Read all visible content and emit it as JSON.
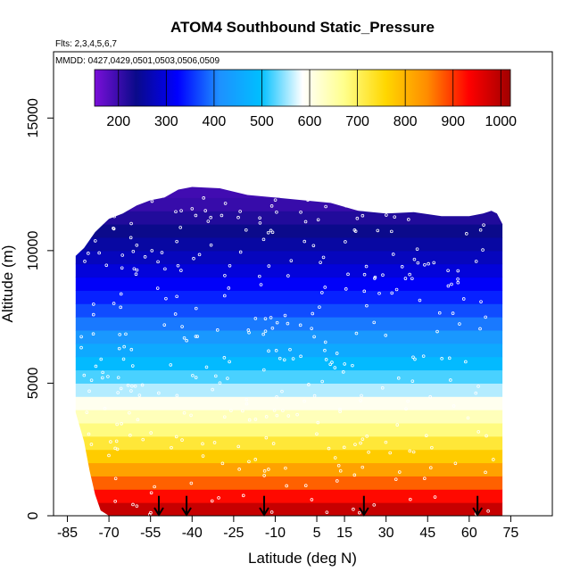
{
  "chart_data": {
    "type": "heatmap",
    "title": "ATOM4 Southbound Static_Pressure",
    "flights_note": "Flts: 2,3,4,5,6,7",
    "dates_note": "MMDD: 0427,0429,0501,0503,0506,0509",
    "xlabel": "Latitude (deg N)",
    "ylabel": "Altitude (m)",
    "xlim": [
      -90,
      90
    ],
    "ylim": [
      0,
      17500
    ],
    "x_ticks": [
      -85,
      -70,
      -55,
      -40,
      -25,
      -10,
      5,
      15,
      30,
      45,
      60,
      75
    ],
    "y_ticks": [
      0,
      5000,
      10000,
      15000
    ],
    "colorbar": {
      "min": 150,
      "max": 1020,
      "ticks": [
        200,
        300,
        400,
        500,
        600,
        700,
        800,
        900,
        1000
      ],
      "palette": [
        "#7a0fd9",
        "#0a0a8a",
        "#0000ff",
        "#1e90ff",
        "#00bfff",
        "#ffffff",
        "#ffff8c",
        "#ffd700",
        "#ff8c00",
        "#ff0000",
        "#a00000"
      ]
    },
    "pressure_profile": [
      {
        "altitude_m": 0,
        "pressure": 1013
      },
      {
        "altitude_m": 1000,
        "pressure": 899
      },
      {
        "altitude_m": 2000,
        "pressure": 795
      },
      {
        "altitude_m": 3000,
        "pressure": 701
      },
      {
        "altitude_m": 4000,
        "pressure": 616
      },
      {
        "altitude_m": 5000,
        "pressure": 540
      },
      {
        "altitude_m": 6000,
        "pressure": 472
      },
      {
        "altitude_m": 7000,
        "pressure": 411
      },
      {
        "altitude_m": 8000,
        "pressure": 356
      },
      {
        "altitude_m": 9000,
        "pressure": 307
      },
      {
        "altitude_m": 10000,
        "pressure": 264
      },
      {
        "altitude_m": 11000,
        "pressure": 227
      },
      {
        "altitude_m": 12000,
        "pressure": 194
      }
    ],
    "coverage_envelope": {
      "latitude": [
        -82,
        -79,
        -77,
        -75,
        -73,
        -70,
        -65,
        -60,
        -55,
        -50,
        -45,
        -40,
        -30,
        -20,
        -10,
        0,
        10,
        20,
        30,
        40,
        50,
        60,
        65,
        68,
        70,
        72
      ],
      "altitude_top_m": [
        9800,
        10100,
        10400,
        10700,
        10900,
        11200,
        11400,
        11700,
        11900,
        12000,
        12300,
        12400,
        12350,
        12100,
        12000,
        11900,
        11800,
        11500,
        11400,
        11450,
        11300,
        11300,
        11400,
        11500,
        11400,
        11000
      ],
      "altitude_bottom_m": [
        3900,
        2800,
        1700,
        800,
        200,
        0,
        0,
        0,
        0,
        0,
        0,
        0,
        0,
        0,
        0,
        0,
        0,
        0,
        0,
        0,
        0,
        0,
        0,
        0,
        0,
        0
      ]
    },
    "sounding_markers_latitude": [
      -52,
      -42,
      -14,
      22,
      63
    ]
  }
}
